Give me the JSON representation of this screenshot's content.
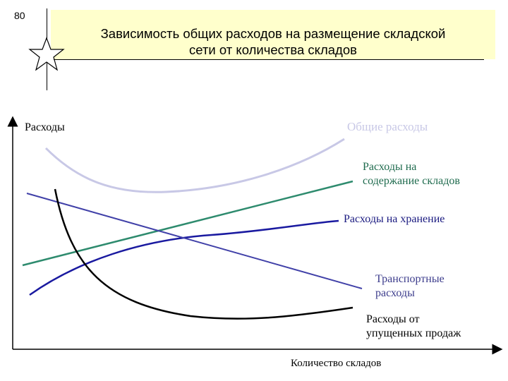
{
  "slide": {
    "number": "80",
    "title_line1": "Зависимость общих расходов на размещение складской",
    "title_line2": "сети от количества складов"
  },
  "axes": {
    "y_label": "Расходы",
    "x_label": "Количество складов"
  },
  "curves": {
    "total": {
      "label": "Общие расходы",
      "color": "#c8c8e6"
    },
    "maintenance": {
      "label_line1": "Расходы на",
      "label_line2": "содержание складов",
      "color": "#2e8b6e"
    },
    "storage": {
      "label": "Расходы на хранение",
      "color": "#1a1aa0"
    },
    "transport": {
      "label_line1": "Транспортные",
      "label_line2": "расходы",
      "color": "#4040a8"
    },
    "lost_sales": {
      "label_line1": "Расходы от",
      "label_line2": "упущенных продаж",
      "color": "#000000"
    }
  }
}
